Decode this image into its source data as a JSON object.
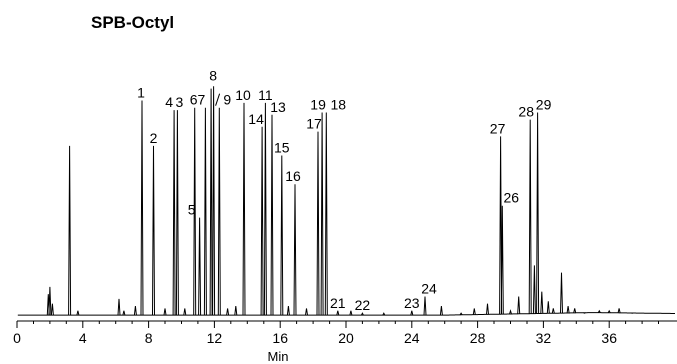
{
  "chart_data": {
    "type": "line",
    "title": "SPB-Octyl",
    "xlabel": "Min",
    "ylabel": "",
    "xlim": [
      0,
      40
    ],
    "ylim": [
      0,
      100
    ],
    "x_ticks": [
      0,
      4,
      8,
      12,
      16,
      20,
      24,
      28,
      32,
      36
    ],
    "grid": false,
    "legend": "none",
    "peaks": [
      {
        "t": 1.9,
        "h": 10
      },
      {
        "t": 2.0,
        "h": 13
      },
      {
        "t": 2.15,
        "h": 6
      },
      {
        "t": 3.2,
        "h": 72
      },
      {
        "t": 3.7,
        "h": 3
      },
      {
        "t": 6.2,
        "h": 8
      },
      {
        "t": 6.5,
        "h": 3
      },
      {
        "t": 7.2,
        "h": 5
      },
      {
        "t": 7.6,
        "h": 91,
        "label": "1"
      },
      {
        "t": 8.3,
        "h": 72,
        "label": "2"
      },
      {
        "t": 9.0,
        "h": 4
      },
      {
        "t": 9.55,
        "h": 87,
        "label": "4"
      },
      {
        "t": 9.75,
        "h": 87,
        "label": "3"
      },
      {
        "t": 10.2,
        "h": 4
      },
      {
        "t": 10.8,
        "h": 88,
        "label": "6"
      },
      {
        "t": 11.1,
        "h": 42,
        "label": "5"
      },
      {
        "t": 11.45,
        "h": 88,
        "label": "7"
      },
      {
        "t": 11.8,
        "h": 96,
        "label": "8"
      },
      {
        "t": 11.95,
        "h": 97
      },
      {
        "t": 12.3,
        "h": 88,
        "label": "9"
      },
      {
        "t": 12.8,
        "h": 4
      },
      {
        "t": 13.3,
        "h": 5
      },
      {
        "t": 13.8,
        "h": 90,
        "label": "10"
      },
      {
        "t": 14.9,
        "h": 80,
        "label": "14"
      },
      {
        "t": 15.1,
        "h": 90,
        "label": "11"
      },
      {
        "t": 15.5,
        "h": 85,
        "label": "13"
      },
      {
        "t": 16.1,
        "h": 68,
        "label": "15"
      },
      {
        "t": 16.5,
        "h": 5
      },
      {
        "t": 16.9,
        "h": 56,
        "label": "16"
      },
      {
        "t": 17.6,
        "h": 4
      },
      {
        "t": 18.3,
        "h": 78,
        "label": "17"
      },
      {
        "t": 18.55,
        "h": 86,
        "label": "19"
      },
      {
        "t": 18.8,
        "h": 86,
        "label": "18"
      },
      {
        "t": 19.5,
        "h": 3,
        "label": "21"
      },
      {
        "t": 20.3,
        "h": 3
      },
      {
        "t": 21.0,
        "h": 2,
        "label": "22"
      },
      {
        "t": 22.3,
        "h": 2
      },
      {
        "t": 24.0,
        "h": 3,
        "label": "23"
      },
      {
        "t": 24.8,
        "h": 9,
        "label": "24"
      },
      {
        "t": 25.8,
        "h": 5
      },
      {
        "t": 27.0,
        "h": 2
      },
      {
        "t": 27.8,
        "h": 4
      },
      {
        "t": 28.6,
        "h": 6
      },
      {
        "t": 29.4,
        "h": 76,
        "label": "27"
      },
      {
        "t": 29.5,
        "h": 47,
        "label": "26"
      },
      {
        "t": 30.0,
        "h": 3
      },
      {
        "t": 30.5,
        "h": 9
      },
      {
        "t": 31.2,
        "h": 83,
        "label": "28"
      },
      {
        "t": 31.45,
        "h": 22
      },
      {
        "t": 31.65,
        "h": 86,
        "label": "29"
      },
      {
        "t": 31.9,
        "h": 11
      },
      {
        "t": 32.3,
        "h": 7
      },
      {
        "t": 32.6,
        "h": 4
      },
      {
        "t": 33.1,
        "h": 19
      },
      {
        "t": 33.5,
        "h": 5
      },
      {
        "t": 33.9,
        "h": 4
      },
      {
        "t": 34.5,
        "h": 2
      },
      {
        "t": 35.4,
        "h": 3
      },
      {
        "t": 36.0,
        "h": 3
      },
      {
        "t": 36.6,
        "h": 4
      },
      {
        "t": 37.4,
        "h": 2
      }
    ]
  }
}
